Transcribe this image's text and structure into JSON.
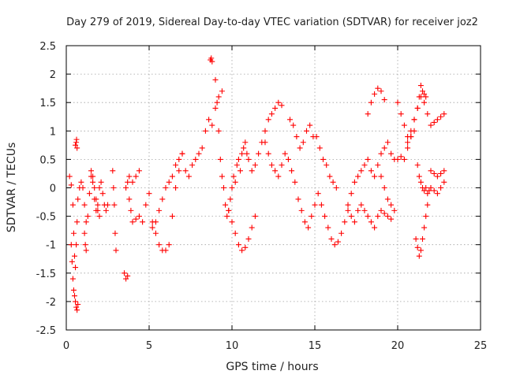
{
  "chart_data": {
    "type": "scatter",
    "title": "Day 279 of 2019, Sidereal Day-to-day VTEC variation (SDTVAR) for receiver joz2",
    "xlabel": "GPS time / hours",
    "ylabel": "SDTVAR / TECUs",
    "xlim": [
      0,
      25
    ],
    "ylim": [
      -2.5,
      2.5
    ],
    "xticks": [
      0,
      5,
      10,
      15,
      20,
      25
    ],
    "xtick_labels": [
      "0",
      "5",
      "10",
      "15",
      "20",
      "25"
    ],
    "yticks": [
      -2.5,
      -2,
      -1.5,
      -1,
      -0.5,
      0,
      0.5,
      1,
      1.5,
      2,
      2.5
    ],
    "ytick_labels": [
      "-2.5",
      "-2",
      "-1.5",
      "-1",
      "-0.5",
      "0",
      "0.5",
      "1",
      "1.5",
      "2",
      "2.5"
    ],
    "grid": true,
    "marker": "plus",
    "color": "#ff0000",
    "series": [
      {
        "name": "SDTVAR",
        "x": [
          0.2,
          0.3,
          0.4,
          0.45,
          0.5,
          0.55,
          0.6,
          0.65,
          0.7,
          0.8,
          0.9,
          1.0,
          1.1,
          1.2,
          1.3,
          1.4,
          1.5,
          1.6,
          1.7,
          1.8,
          1.9,
          2.0,
          2.1,
          2.2,
          2.3,
          2.4,
          2.5,
          0.3,
          0.35,
          0.4,
          0.45,
          0.5,
          0.55,
          0.6,
          0.65,
          0.7,
          0.55,
          0.6,
          0.62,
          0.65,
          1.1,
          1.15,
          1.2,
          1.5,
          1.6,
          1.7,
          1.8,
          1.9,
          2.0,
          2.8,
          2.85,
          2.9,
          2.95,
          3.0,
          3.5,
          3.6,
          3.7,
          3.8,
          3.9,
          4.0,
          4.2,
          4.4,
          4.6,
          4.8,
          5.0,
          5.2,
          5.4,
          5.6,
          5.8,
          6.0,
          6.2,
          6.4,
          6.6,
          6.8,
          7.0,
          7.2,
          7.4,
          7.6,
          7.8,
          8.0,
          8.2,
          8.4,
          8.6,
          8.8,
          9.0,
          9.2,
          9.4,
          3.6,
          3.7,
          3.8,
          4.0,
          4.2,
          4.4,
          5.2,
          5.4,
          5.6,
          5.8,
          6.0,
          6.2,
          6.4,
          6.6,
          6.8,
          7.0,
          8.7,
          8.75,
          8.8,
          9.0,
          9.1,
          9.2,
          9.3,
          9.4,
          9.5,
          9.6,
          9.7,
          9.8,
          9.9,
          10.0,
          10.1,
          10.2,
          10.3,
          10.4,
          10.5,
          10.6,
          10.7,
          10.8,
          10.9,
          11.0,
          11.2,
          11.4,
          11.6,
          11.8,
          12.0,
          12.2,
          12.4,
          12.6,
          12.8,
          13.0,
          9.8,
          10.0,
          10.2,
          10.4,
          10.6,
          10.8,
          11.0,
          11.2,
          11.4,
          12.0,
          12.2,
          12.4,
          12.6,
          12.8,
          13.0,
          13.2,
          13.4,
          13.6,
          13.8,
          14.0,
          14.2,
          14.4,
          14.6,
          14.8,
          15.0,
          15.2,
          15.4,
          15.6,
          15.8,
          16.0,
          16.2,
          16.4,
          16.6,
          16.8,
          17.0,
          13.5,
          13.7,
          13.9,
          14.1,
          14.3,
          14.5,
          14.7,
          14.9,
          15.1,
          15.3,
          15.5,
          15.7,
          15.9,
          16.1,
          16.3,
          17.0,
          17.2,
          17.4,
          17.6,
          17.8,
          18.0,
          18.2,
          18.4,
          18.6,
          18.8,
          19.0,
          19.2,
          19.4,
          19.6,
          19.8,
          20.0,
          20.2,
          20.4,
          20.6,
          20.8,
          21.0,
          21.2,
          21.4,
          21.6,
          21.8,
          22.0,
          22.2,
          22.4,
          22.6,
          22.8,
          17.2,
          17.4,
          17.6,
          17.8,
          18.0,
          18.2,
          18.4,
          18.6,
          18.8,
          19.0,
          19.2,
          19.4,
          19.6,
          18.2,
          18.4,
          18.6,
          18.8,
          19.0,
          19.2,
          19.0,
          19.2,
          19.4,
          19.6,
          19.8,
          20.0,
          20.2,
          20.4,
          20.6,
          20.8,
          21.0,
          21.2,
          21.3,
          21.4,
          21.5,
          21.6,
          21.7,
          21.1,
          21.2,
          21.3,
          21.4,
          21.5,
          21.6,
          21.7,
          21.8,
          21.2,
          21.3,
          21.4,
          21.5,
          21.6,
          21.7,
          21.8,
          21.9,
          22.0,
          22.0,
          22.2,
          22.4,
          22.6,
          22.8,
          22.0,
          22.2,
          22.4,
          22.6,
          22.8,
          20.6,
          20.8,
          21.0
        ],
        "y": [
          0.2,
          0.05,
          -0.3,
          -0.8,
          -1.2,
          -1.4,
          -1.0,
          -0.6,
          -0.2,
          0.0,
          0.1,
          0.0,
          -0.3,
          -0.6,
          -0.5,
          -0.1,
          0.2,
          0.1,
          -0.2,
          -0.4,
          -0.3,
          0.0,
          0.1,
          -0.1,
          -0.3,
          -0.4,
          -0.3,
          -1.0,
          -1.3,
          -1.6,
          -1.8,
          -1.9,
          -2.0,
          -2.1,
          -2.15,
          -2.05,
          0.75,
          0.8,
          0.85,
          0.7,
          -0.8,
          -1.0,
          -1.1,
          0.3,
          0.2,
          0.0,
          -0.2,
          -0.4,
          -0.5,
          0.3,
          0.0,
          -0.3,
          -0.8,
          -1.1,
          -1.5,
          -1.6,
          -1.55,
          -0.2,
          -0.4,
          -0.6,
          -0.55,
          -0.5,
          -0.6,
          -0.3,
          -0.1,
          -0.6,
          -0.8,
          -1.0,
          -1.1,
          -1.1,
          -1.0,
          -0.5,
          0.0,
          0.3,
          0.6,
          0.3,
          0.2,
          0.4,
          0.5,
          0.6,
          0.7,
          1.0,
          1.2,
          1.1,
          1.4,
          1.6,
          1.7,
          0.0,
          0.1,
          0.2,
          0.1,
          0.2,
          0.3,
          -0.7,
          -0.6,
          -0.4,
          -0.2,
          0.0,
          0.1,
          0.2,
          0.4,
          0.5,
          0.6,
          2.25,
          2.28,
          2.22,
          1.9,
          1.5,
          1.0,
          0.5,
          0.2,
          0.0,
          -0.3,
          -0.5,
          -0.4,
          -0.2,
          0.0,
          0.2,
          0.1,
          0.4,
          0.5,
          0.3,
          0.6,
          0.7,
          0.8,
          0.6,
          0.5,
          0.3,
          0.4,
          0.6,
          0.8,
          1.0,
          1.2,
          1.3,
          1.4,
          1.5,
          1.45,
          -0.4,
          -0.6,
          -0.8,
          -1.0,
          -1.1,
          -1.05,
          -0.9,
          -0.7,
          -0.5,
          0.8,
          0.6,
          0.4,
          0.3,
          0.2,
          0.4,
          0.6,
          0.5,
          0.3,
          0.1,
          -0.2,
          -0.4,
          -0.6,
          -0.7,
          -0.5,
          -0.3,
          -0.1,
          -0.3,
          -0.5,
          -0.7,
          -0.9,
          -1.0,
          -0.95,
          -0.8,
          -0.6,
          -0.4,
          1.2,
          1.1,
          0.9,
          0.7,
          0.8,
          1.0,
          1.1,
          0.9,
          0.9,
          0.7,
          0.5,
          0.4,
          0.2,
          0.1,
          0.0,
          -0.3,
          -0.1,
          0.1,
          0.2,
          0.3,
          0.4,
          0.5,
          0.3,
          0.2,
          0.4,
          0.6,
          0.7,
          0.8,
          0.6,
          0.5,
          0.5,
          0.55,
          0.5,
          0.7,
          0.9,
          1.2,
          1.4,
          1.6,
          1.5,
          1.3,
          1.1,
          1.15,
          1.2,
          1.25,
          1.3,
          -0.5,
          -0.6,
          -0.4,
          -0.3,
          -0.4,
          -0.5,
          -0.6,
          -0.7,
          -0.5,
          -0.4,
          -0.45,
          -0.5,
          -0.55,
          1.3,
          1.5,
          1.65,
          1.75,
          1.7,
          1.55,
          0.2,
          0.0,
          -0.2,
          -0.3,
          -0.4,
          1.5,
          1.3,
          1.1,
          0.9,
          1.0,
          1.2,
          1.4,
          1.6,
          1.8,
          1.7,
          1.65,
          1.6,
          -0.9,
          -1.05,
          -1.2,
          -1.1,
          -0.9,
          -0.7,
          -0.5,
          -0.3,
          0.4,
          0.2,
          0.1,
          0.0,
          -0.05,
          0.0,
          -0.1,
          -0.05,
          0.0,
          0.0,
          -0.05,
          -0.1,
          0.0,
          0.1,
          0.3,
          0.25,
          0.2,
          0.25,
          0.3,
          0.8,
          0.9,
          1.0
        ]
      }
    ]
  }
}
